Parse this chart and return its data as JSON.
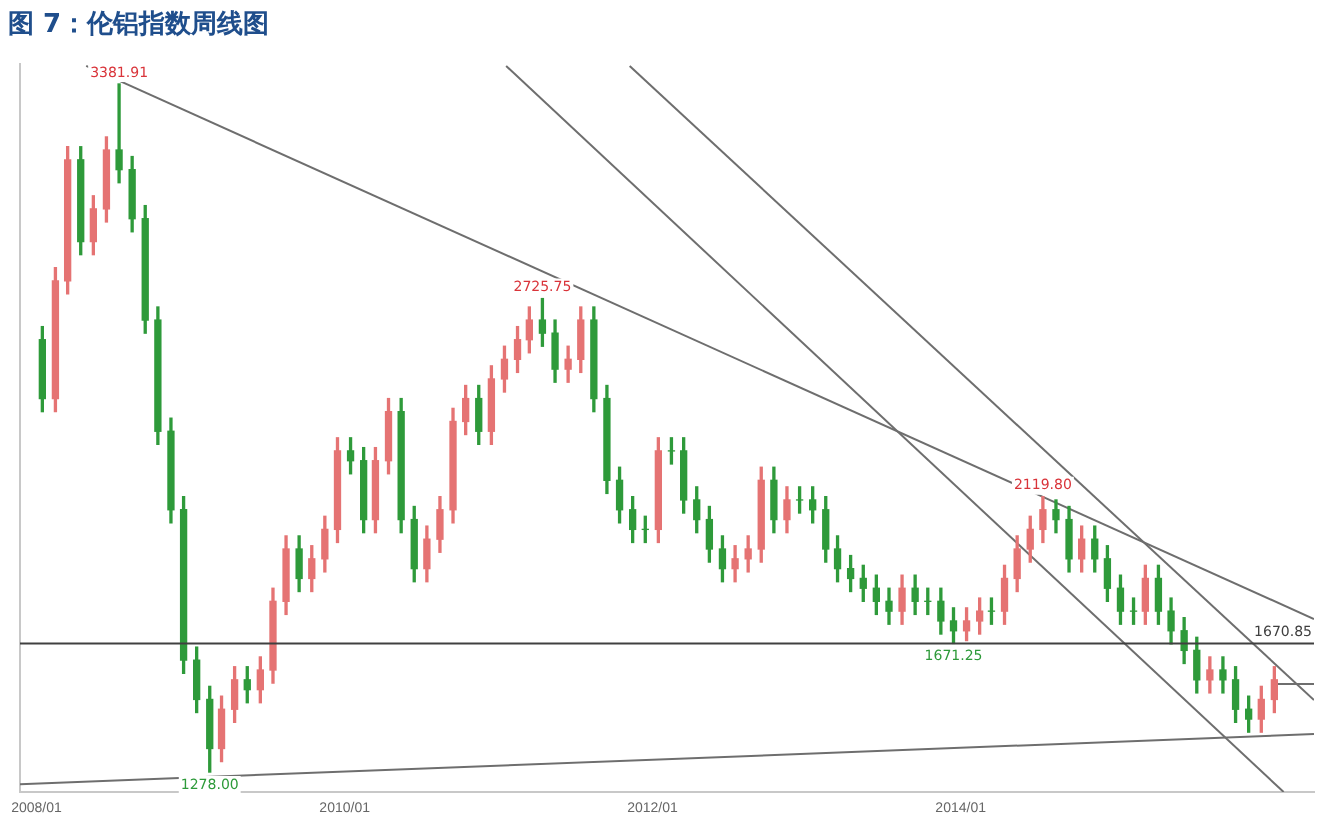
{
  "chart_data": {
    "type": "candlestick",
    "title": "图 7：伦铝指数周线图",
    "x": [
      "2008-01-15",
      "2008-02-15",
      "2008-03-15",
      "2008-04-15",
      "2008-05-15",
      "2008-06-15",
      "2008-07-15",
      "2008-08-15",
      "2008-09-15",
      "2008-10-15",
      "2008-11-15",
      "2008-12-15",
      "2009-01-15",
      "2009-02-15",
      "2009-03-15",
      "2009-04-15",
      "2009-05-15",
      "2009-06-15",
      "2009-07-15",
      "2009-08-15",
      "2009-09-15",
      "2009-10-15",
      "2009-11-15",
      "2009-12-15",
      "2010-01-15",
      "2010-02-15",
      "2010-03-15",
      "2010-04-15",
      "2010-05-15",
      "2010-06-15",
      "2010-07-15",
      "2010-08-15",
      "2010-09-15",
      "2010-10-15",
      "2010-11-15",
      "2010-12-15",
      "2011-01-15",
      "2011-02-15",
      "2011-03-15",
      "2011-04-15",
      "2011-05-15",
      "2011-06-15",
      "2011-07-15",
      "2011-08-15",
      "2011-09-15",
      "2011-10-15",
      "2011-11-15",
      "2011-12-15",
      "2012-01-15",
      "2012-02-15",
      "2012-03-15",
      "2012-04-15",
      "2012-05-15",
      "2012-06-15",
      "2012-07-15",
      "2012-08-15",
      "2012-09-15",
      "2012-10-15",
      "2012-11-15",
      "2012-12-15",
      "2013-01-15",
      "2013-02-15",
      "2013-03-15",
      "2013-04-15",
      "2013-05-15",
      "2013-06-15",
      "2013-07-15",
      "2013-08-15",
      "2013-09-15",
      "2013-10-15",
      "2013-11-15",
      "2013-12-15",
      "2014-01-15",
      "2014-02-15",
      "2014-03-15",
      "2014-04-15",
      "2014-05-15",
      "2014-06-15",
      "2014-07-15",
      "2014-08-15",
      "2014-09-15",
      "2014-10-15",
      "2014-11-15",
      "2014-12-15",
      "2015-01-15",
      "2015-02-15",
      "2015-03-15",
      "2015-04-15",
      "2015-05-15",
      "2015-06-15",
      "2015-07-15",
      "2015-08-15",
      "2015-09-15",
      "2015-10-15",
      "2015-11-15",
      "2015-12-15",
      "2016-01-15"
    ],
    "ohlc": [
      [
        2600,
        2640,
        2380,
        2420
      ],
      [
        2420,
        2820,
        2380,
        2780
      ],
      [
        2780,
        3190,
        2740,
        3150
      ],
      [
        3150,
        3190,
        2860,
        2900
      ],
      [
        2900,
        3040,
        2860,
        3000
      ],
      [
        3000,
        3220,
        2960,
        3180
      ],
      [
        3180,
        3381.91,
        3080,
        3120
      ],
      [
        3120,
        3160,
        2930,
        2970
      ],
      [
        2970,
        3010,
        2620,
        2660
      ],
      [
        2660,
        2700,
        2280,
        2320
      ],
      [
        2320,
        2360,
        2040,
        2080
      ],
      [
        2080,
        2120,
        1580,
        1620
      ],
      [
        1620,
        1660,
        1460,
        1500
      ],
      [
        1500,
        1540,
        1278.0,
        1350
      ],
      [
        1350,
        1510,
        1310,
        1470
      ],
      [
        1470,
        1600,
        1430,
        1560
      ],
      [
        1560,
        1600,
        1490,
        1530
      ],
      [
        1530,
        1630,
        1490,
        1590
      ],
      [
        1590,
        1840,
        1550,
        1800
      ],
      [
        1800,
        2000,
        1760,
        1960
      ],
      [
        1960,
        2000,
        1830,
        1870
      ],
      [
        1870,
        1970,
        1830,
        1930
      ],
      [
        1930,
        2060,
        1890,
        2020
      ],
      [
        2020,
        2300,
        1980,
        2260
      ],
      [
        2260,
        2300,
        2190,
        2230
      ],
      [
        2230,
        2270,
        2010,
        2050
      ],
      [
        2050,
        2270,
        2010,
        2230
      ],
      [
        2230,
        2420,
        2190,
        2380
      ],
      [
        2380,
        2420,
        2010,
        2050
      ],
      [
        2050,
        2090,
        1860,
        1900
      ],
      [
        1900,
        2030,
        1860,
        1990
      ],
      [
        1990,
        2120,
        1950,
        2080
      ],
      [
        2080,
        2390,
        2040,
        2350
      ],
      [
        2350,
        2460,
        2310,
        2420
      ],
      [
        2420,
        2460,
        2280,
        2320
      ],
      [
        2320,
        2520,
        2280,
        2480
      ],
      [
        2480,
        2580,
        2440,
        2540
      ],
      [
        2540,
        2640,
        2500,
        2600
      ],
      [
        2600,
        2700,
        2560,
        2660
      ],
      [
        2660,
        2725.75,
        2580,
        2620
      ],
      [
        2620,
        2660,
        2470,
        2510
      ],
      [
        2510,
        2580,
        2470,
        2540
      ],
      [
        2540,
        2700,
        2500,
        2660
      ],
      [
        2660,
        2700,
        2380,
        2420
      ],
      [
        2420,
        2460,
        2130,
        2170
      ],
      [
        2170,
        2210,
        2040,
        2080
      ],
      [
        2080,
        2120,
        1980,
        2020
      ],
      [
        2020,
        2060,
        1980,
        2020
      ],
      [
        2020,
        2300,
        1980,
        2260
      ],
      [
        2260,
        2300,
        2220,
        2260
      ],
      [
        2260,
        2300,
        2070,
        2110
      ],
      [
        2110,
        2150,
        2010,
        2050
      ],
      [
        2050,
        2090,
        1920,
        1960
      ],
      [
        1960,
        2000,
        1860,
        1900
      ],
      [
        1900,
        1970,
        1860,
        1930
      ],
      [
        1930,
        2000,
        1890,
        1960
      ],
      [
        1960,
        2210,
        1920,
        2170
      ],
      [
        2170,
        2210,
        2010,
        2050
      ],
      [
        2050,
        2150,
        2010,
        2110
      ],
      [
        2110,
        2150,
        2070,
        2110
      ],
      [
        2110,
        2150,
        2040,
        2080
      ],
      [
        2080,
        2120,
        1920,
        1960
      ],
      [
        1960,
        2000,
        1860,
        1900
      ],
      [
        1900,
        1940,
        1830,
        1870
      ],
      [
        1870,
        1910,
        1800,
        1840
      ],
      [
        1840,
        1880,
        1760,
        1800
      ],
      [
        1800,
        1840,
        1730,
        1770
      ],
      [
        1770,
        1880,
        1730,
        1840
      ],
      [
        1840,
        1880,
        1760,
        1800
      ],
      [
        1800,
        1840,
        1760,
        1800
      ],
      [
        1800,
        1840,
        1700,
        1740
      ],
      [
        1740,
        1780,
        1671.25,
        1710
      ],
      [
        1710,
        1780,
        1680,
        1740
      ],
      [
        1740,
        1810,
        1700,
        1770
      ],
      [
        1770,
        1810,
        1730,
        1770
      ],
      [
        1770,
        1910,
        1730,
        1870
      ],
      [
        1870,
        2000,
        1830,
        1960
      ],
      [
        1960,
        2060,
        1920,
        2020
      ],
      [
        2020,
        2119.8,
        1980,
        2080
      ],
      [
        2080,
        2110,
        2010,
        2050
      ],
      [
        2050,
        2090,
        1890,
        1930
      ],
      [
        1930,
        2030,
        1890,
        1990
      ],
      [
        1990,
        2030,
        1890,
        1930
      ],
      [
        1930,
        1970,
        1800,
        1840
      ],
      [
        1840,
        1880,
        1730,
        1770
      ],
      [
        1770,
        1810,
        1730,
        1770
      ],
      [
        1770,
        1910,
        1730,
        1870
      ],
      [
        1870,
        1910,
        1730,
        1770
      ],
      [
        1770,
        1810,
        1670,
        1710
      ],
      [
        1710,
        1750,
        1610,
        1650
      ],
      [
        1650,
        1690,
        1520,
        1560
      ],
      [
        1560,
        1630,
        1520,
        1590
      ],
      [
        1590,
        1630,
        1520,
        1560
      ],
      [
        1560,
        1600,
        1430,
        1470
      ],
      [
        1470,
        1510,
        1400,
        1440
      ],
      [
        1440,
        1540,
        1400,
        1500
      ],
      [
        1500,
        1600,
        1460,
        1560
      ]
    ],
    "colors": [
      "#2e9a3a",
      "#e57373",
      "#e57373",
      "#2e9a3a",
      "#e57373",
      "#e57373",
      "#2e9a3a",
      "#2e9a3a",
      "#2e9a3a",
      "#2e9a3a",
      "#2e9a3a",
      "#2e9a3a",
      "#2e9a3a",
      "#2e9a3a",
      "#e57373",
      "#e57373",
      "#2e9a3a",
      "#e57373",
      "#e57373",
      "#e57373",
      "#2e9a3a",
      "#e57373",
      "#e57373",
      "#e57373",
      "#2e9a3a",
      "#2e9a3a",
      "#e57373",
      "#e57373",
      "#2e9a3a",
      "#2e9a3a",
      "#e57373",
      "#e57373",
      "#e57373",
      "#e57373",
      "#2e9a3a",
      "#e57373",
      "#e57373",
      "#e57373",
      "#e57373",
      "#2e9a3a",
      "#2e9a3a",
      "#e57373",
      "#e57373",
      "#2e9a3a",
      "#2e9a3a",
      "#2e9a3a",
      "#2e9a3a",
      "#2e9a3a",
      "#e57373",
      "#2e9a3a",
      "#2e9a3a",
      "#2e9a3a",
      "#2e9a3a",
      "#2e9a3a",
      "#e57373",
      "#e57373",
      "#e57373",
      "#2e9a3a",
      "#e57373",
      "#2e9a3a",
      "#2e9a3a",
      "#2e9a3a",
      "#2e9a3a",
      "#2e9a3a",
      "#2e9a3a",
      "#2e9a3a",
      "#2e9a3a",
      "#e57373",
      "#2e9a3a",
      "#2e9a3a",
      "#2e9a3a",
      "#2e9a3a",
      "#e57373",
      "#e57373",
      "#2e9a3a",
      "#e57373",
      "#e57373",
      "#e57373",
      "#e57373",
      "#2e9a3a",
      "#2e9a3a",
      "#e57373",
      "#2e9a3a",
      "#2e9a3a",
      "#2e9a3a",
      "#2e9a3a",
      "#e57373",
      "#2e9a3a",
      "#2e9a3a",
      "#2e9a3a",
      "#2e9a3a",
      "#e57373",
      "#2e9a3a",
      "#2e9a3a",
      "#2e9a3a",
      "#e57373",
      "#e57373"
    ],
    "series": [
      {
        "type": "line",
        "x": [
          "2008-04-28",
          "2016-04-18"
        ],
        "values": [
          3437,
          1746
        ],
        "color": "#6e6e6e"
      },
      {
        "type": "line",
        "x": [
          "2011-01-19",
          "2016-02-06"
        ],
        "values": [
          3437,
          1217
        ],
        "color": "#6e6e6e"
      },
      {
        "type": "line",
        "x": [
          "2011-11-08",
          "2016-04-18"
        ],
        "values": [
          3437,
          1498
        ],
        "color": "#6e6e6e"
      },
      {
        "type": "line",
        "x": [
          "2007-11-23",
          "2016-04-18"
        ],
        "values": [
          1241,
          1394
        ],
        "color": "#6e6e6e"
      },
      {
        "type": "line",
        "x": [
          "2016-01-11",
          "2016-04-18"
        ],
        "values": [
          1547,
          1547
        ],
        "color": "#6e6e6e"
      }
    ],
    "ref_lines": [
      {
        "axis": "y",
        "value": 1670.85,
        "label": "1670.85",
        "color": "#404040"
      }
    ],
    "annotations": [
      {
        "text": "3381.91",
        "x": "2008-07-15",
        "y": 3381.91
      },
      {
        "text": "1278.00",
        "x": "2009-02-15",
        "y": 1278.0
      },
      {
        "text": "2725.75",
        "x": "2011-04-15",
        "y": 2725.75
      },
      {
        "text": "1671.25",
        "x": "2013-12-15",
        "y": 1671.25
      },
      {
        "text": "2119.80",
        "x": "2014-07-15",
        "y": 2119.8
      }
    ],
    "xlim": [
      "2007-11-23",
      "2016-04-18"
    ],
    "xticks": [
      {
        "value": "2008-01",
        "label": "2008/01"
      },
      {
        "value": "2010-01",
        "label": "2010/01"
      },
      {
        "value": "2012-01",
        "label": "2012/01"
      },
      {
        "value": "2014-01",
        "label": "2014/01"
      }
    ],
    "ylim": [
      1217,
      3443
    ],
    "tick_labels": "x"
  }
}
